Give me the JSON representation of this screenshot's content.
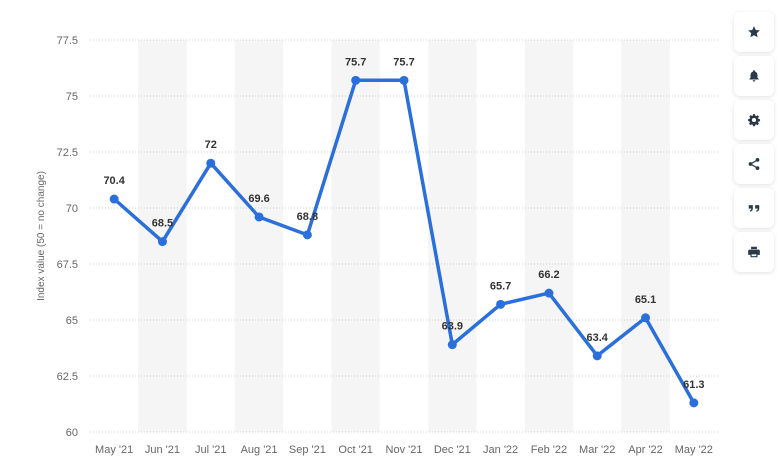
{
  "chart_data": {
    "type": "line",
    "categories": [
      "May '21",
      "Jun '21",
      "Jul '21",
      "Aug '21",
      "Sep '21",
      "Oct '21",
      "Nov '21",
      "Dec '21",
      "Jan '22",
      "Feb '22",
      "Mar '22",
      "Apr '22",
      "May '22"
    ],
    "series": [
      {
        "values": [
          70.4,
          68.5,
          72,
          69.6,
          68.8,
          75.7,
          75.7,
          63.9,
          65.7,
          66.2,
          63.4,
          65.1,
          61.3
        ]
      }
    ],
    "data_labels": [
      "70.4",
      "68.5",
      "72",
      "69.6",
      "68.8",
      "75.7",
      "75.7",
      "63.9",
      "65.7",
      "66.2",
      "63.4",
      "65.1",
      "61.3"
    ],
    "ylabel": "Index value (50 = no change)",
    "ylim": [
      60,
      77.5
    ],
    "yticks": [
      60,
      62.5,
      65,
      67.5,
      70,
      72.5,
      75,
      77.5
    ],
    "ytick_labels": [
      "60",
      "62.5",
      "65",
      "67.5",
      "70",
      "72.5",
      "75",
      "77.5"
    ],
    "grid": true,
    "line_color": "#2a6fdb",
    "band_color": "#f5f5f5"
  },
  "toolbar": [
    {
      "name": "favorite-button",
      "icon": "star-icon"
    },
    {
      "name": "notification-button",
      "icon": "bell-icon"
    },
    {
      "name": "settings-button",
      "icon": "gear-icon"
    },
    {
      "name": "share-button",
      "icon": "share-icon"
    },
    {
      "name": "cite-button",
      "icon": "quote-icon"
    },
    {
      "name": "print-button",
      "icon": "printer-icon"
    }
  ],
  "toolbar_icon_color": "#2b3a4a"
}
